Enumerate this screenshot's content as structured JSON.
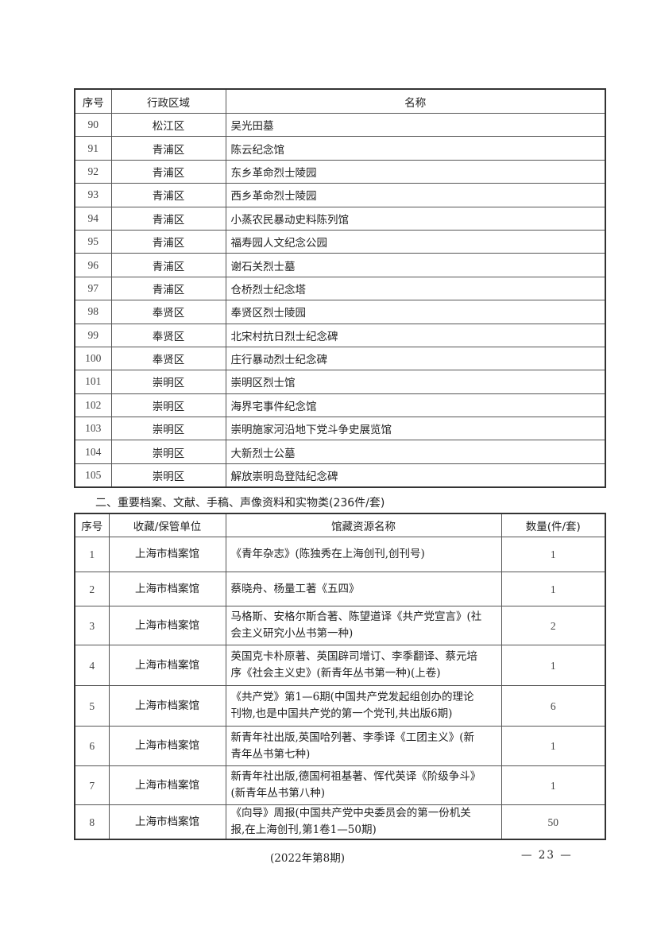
{
  "table1": {
    "headers": [
      "序号",
      "行政区域",
      "名称"
    ],
    "rows": [
      [
        "90",
        "松江区",
        "吴光田墓"
      ],
      [
        "91",
        "青浦区",
        "陈云纪念馆"
      ],
      [
        "92",
        "青浦区",
        "东乡革命烈士陵园"
      ],
      [
        "93",
        "青浦区",
        "西乡革命烈士陵园"
      ],
      [
        "94",
        "青浦区",
        "小蒸农民暴动史料陈列馆"
      ],
      [
        "95",
        "青浦区",
        "福寿园人文纪念公园"
      ],
      [
        "96",
        "青浦区",
        "谢石关烈士墓"
      ],
      [
        "97",
        "青浦区",
        "仓桥烈士纪念塔"
      ],
      [
        "98",
        "奉贤区",
        "奉贤区烈士陵园"
      ],
      [
        "99",
        "奉贤区",
        "北宋村抗日烈士纪念碑"
      ],
      [
        "100",
        "奉贤区",
        "庄行暴动烈士纪念碑"
      ],
      [
        "101",
        "崇明区",
        "崇明区烈士馆"
      ],
      [
        "102",
        "崇明区",
        "海界宅事件纪念馆"
      ],
      [
        "103",
        "崇明区",
        "崇明施家河沿地下党斗争史展览馆"
      ],
      [
        "104",
        "崇明区",
        "大新烈士公墓"
      ],
      [
        "105",
        "崇明区",
        "解放崇明岛登陆纪念碑"
      ]
    ]
  },
  "section_title": "二、重要档案、文献、手稿、声像资料和实物类(236件/套)",
  "table2": {
    "headers": [
      "序号",
      "收藏/保管单位",
      "馆藏资源名称",
      "数量(件/套)"
    ],
    "rows": [
      {
        "no": "1",
        "unit": "上海市档案馆",
        "name": [
          "《青年杂志》(陈独秀在上海创刊,创刊号)"
        ],
        "qty": "1"
      },
      {
        "no": "2",
        "unit": "上海市档案馆",
        "name": [
          "蔡晓舟、杨量工著《五四》"
        ],
        "qty": "1"
      },
      {
        "no": "3",
        "unit": "上海市档案馆",
        "name": [
          "马格斯、安格尔斯合著、陈望道译《共产党宣言》(社",
          "会主义研究小丛书第一种)"
        ],
        "qty": "2"
      },
      {
        "no": "4",
        "unit": "上海市档案馆",
        "name": [
          "英国克卡朴原著、英国辟司增订、李季翻译、蔡元培",
          "序《社会主义史》(新青年丛书第一种)(上卷)"
        ],
        "qty": "1"
      },
      {
        "no": "5",
        "unit": "上海市档案馆",
        "name": [
          "《共产党》第1—6期(中国共产党发起组创办的理论",
          "刊物,也是中国共产党的第一个党刊,共出版6期)"
        ],
        "qty": "6"
      },
      {
        "no": "6",
        "unit": "上海市档案馆",
        "name": [
          "新青年社出版,英国哈列著、李季译《工团主义》(新",
          "青年丛书第七种)"
        ],
        "qty": "1"
      },
      {
        "no": "7",
        "unit": "上海市档案馆",
        "name": [
          "新青年社出版,德国柯祖基著、恽代英译《阶级争斗》",
          "(新青年丛书第八种)"
        ],
        "qty": "1"
      },
      {
        "no": "8",
        "unit": "上海市档案馆",
        "name": [
          "《向导》周报(中国共产党中央委员会的第一份机关",
          "报,在上海创刊,第1卷1—50期)"
        ],
        "qty": "50"
      }
    ]
  },
  "footer": {
    "issue": "(2022年第8期)",
    "page": "— 23 —"
  }
}
